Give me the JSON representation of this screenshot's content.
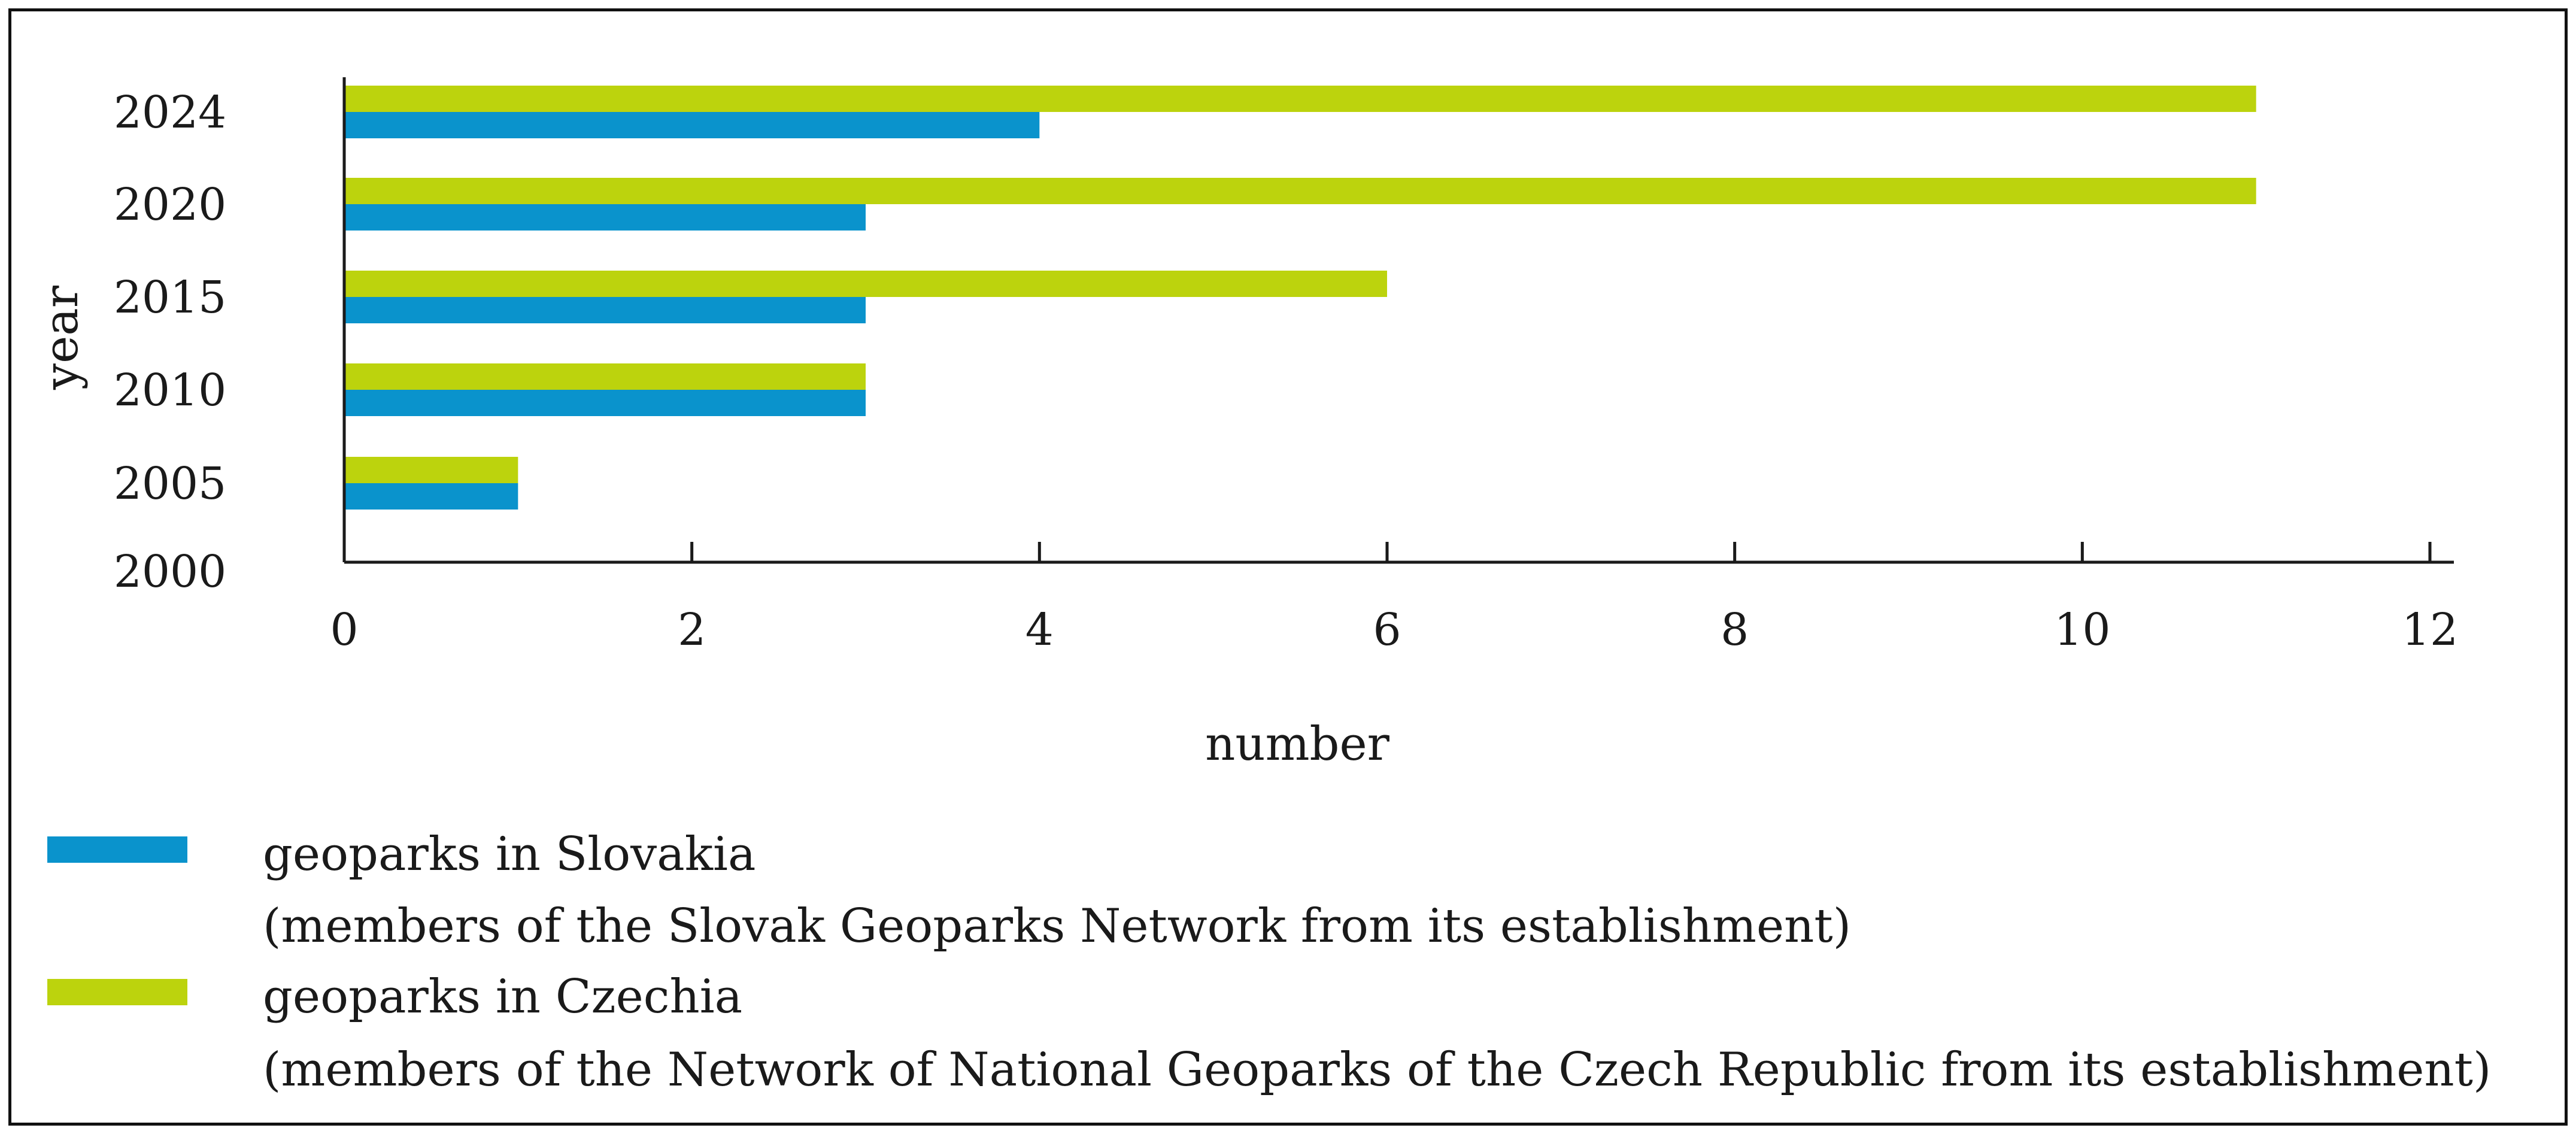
{
  "chart_data": {
    "type": "bar",
    "orientation": "horizontal",
    "categories": [
      "2000",
      "2005",
      "2010",
      "2015",
      "2020",
      "2024"
    ],
    "series": [
      {
        "name": "geoparks in Slovakia",
        "description": "(members of the Slovak Geoparks Network from its establishment)",
        "color": "#0a93cc",
        "values": [
          0,
          1,
          3,
          3,
          3,
          4
        ]
      },
      {
        "name": "geoparks in Czechia",
        "description": "(members of the Network of National Geoparks of the Czech Republic from its establishment)",
        "color": "#bcd30d",
        "values": [
          0,
          1,
          3,
          6,
          11,
          11
        ]
      }
    ],
    "xlabel": "number",
    "ylabel": "year",
    "xlim": [
      0,
      12
    ],
    "xticks": [
      "0",
      "2",
      "4",
      "6",
      "8",
      "10",
      "12"
    ],
    "grid": false,
    "legend_position": "bottom"
  }
}
